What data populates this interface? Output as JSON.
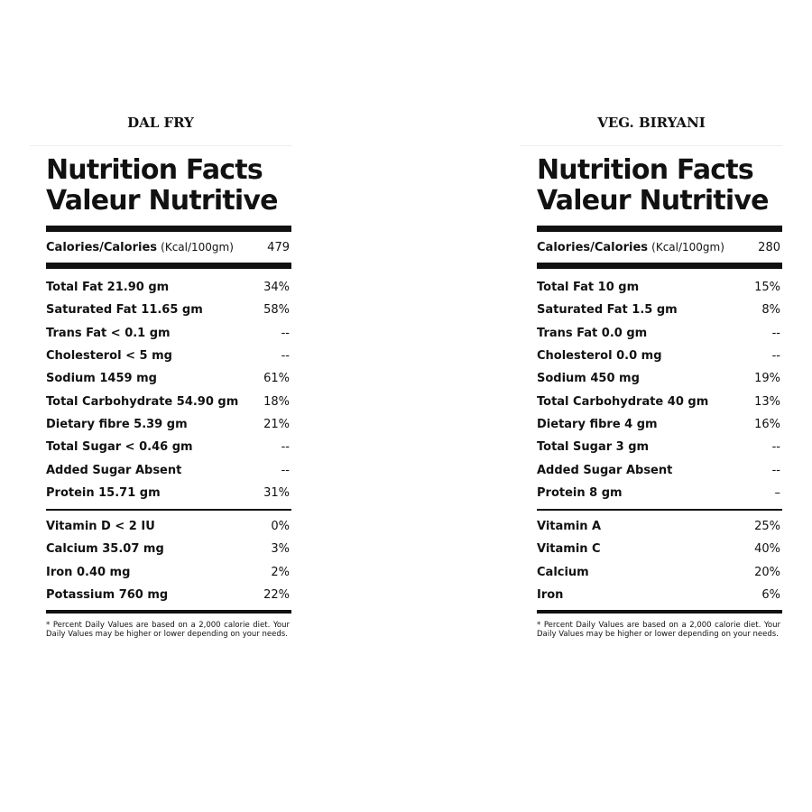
{
  "panels": [
    {
      "dish": "DAL FRY",
      "heading_en": "Nutrition Facts",
      "heading_fr": "Valeur Nutritive",
      "calories_label": "Calories/Calories",
      "calories_unit": "(Kcal/100gm)",
      "calories_value": "479",
      "nutrients": [
        {
          "name": "Total Fat 21.90 gm",
          "dv": "34%"
        },
        {
          "name": "Saturated Fat 11.65 gm",
          "dv": "58%"
        },
        {
          "name": "Trans Fat < 0.1 gm",
          "dv": "--"
        },
        {
          "name": "Cholesterol < 5 mg",
          "dv": "--"
        },
        {
          "name": "Sodium 1459 mg",
          "dv": "61%"
        },
        {
          "name": "Total Carbohydrate 54.90 gm",
          "dv": "18%"
        },
        {
          "name": "Dietary fibre 5.39 gm",
          "dv": "21%"
        },
        {
          "name": "Total Sugar < 0.46 gm",
          "dv": "--"
        },
        {
          "name": "Added Sugar Absent",
          "dv": "--"
        },
        {
          "name": "Protein 15.71 gm",
          "dv": "31%"
        }
      ],
      "vitamins": [
        {
          "name": "Vitamin D < 2 IU",
          "dv": "0%"
        },
        {
          "name": "Calcium 35.07 mg",
          "dv": "3%"
        },
        {
          "name": "Iron 0.40 mg",
          "dv": "2%"
        },
        {
          "name": "Potassium 760 mg",
          "dv": "22%"
        }
      ],
      "footnote": "* Percent Daily Values are based on a 2,000 calorie diet. Your Daily Values may be higher or lower depending on your needs."
    },
    {
      "dish": "VEG. BIRYANI",
      "heading_en": "Nutrition Facts",
      "heading_fr": "Valeur Nutritive",
      "calories_label": "Calories/Calories",
      "calories_unit": "(Kcal/100gm)",
      "calories_value": "280",
      "nutrients": [
        {
          "name": "Total Fat 10 gm",
          "dv": "15%"
        },
        {
          "name": "Saturated Fat 1.5 gm",
          "dv": "8%"
        },
        {
          "name": "Trans Fat 0.0 gm",
          "dv": "--"
        },
        {
          "name": "Cholesterol 0.0 mg",
          "dv": "--"
        },
        {
          "name": "Sodium 450 mg",
          "dv": "19%"
        },
        {
          "name": "Total Carbohydrate 40 gm",
          "dv": "13%"
        },
        {
          "name": "Dietary fibre 4 gm",
          "dv": "16%"
        },
        {
          "name": "Total Sugar 3 gm",
          "dv": "--"
        },
        {
          "name": "Added Sugar Absent",
          "dv": "--"
        },
        {
          "name": "Protein 8 gm",
          "dv": "–"
        }
      ],
      "vitamins": [
        {
          "name": "Vitamin A",
          "dv": "25%"
        },
        {
          "name": "Vitamin C",
          "dv": "40%"
        },
        {
          "name": "Calcium",
          "dv": "20%"
        },
        {
          "name": "Iron",
          "dv": "6%"
        }
      ],
      "footnote": "* Percent Daily Values are based on a 2,000 calorie diet. Your Daily Values may be higher or lower depending on your needs."
    }
  ]
}
